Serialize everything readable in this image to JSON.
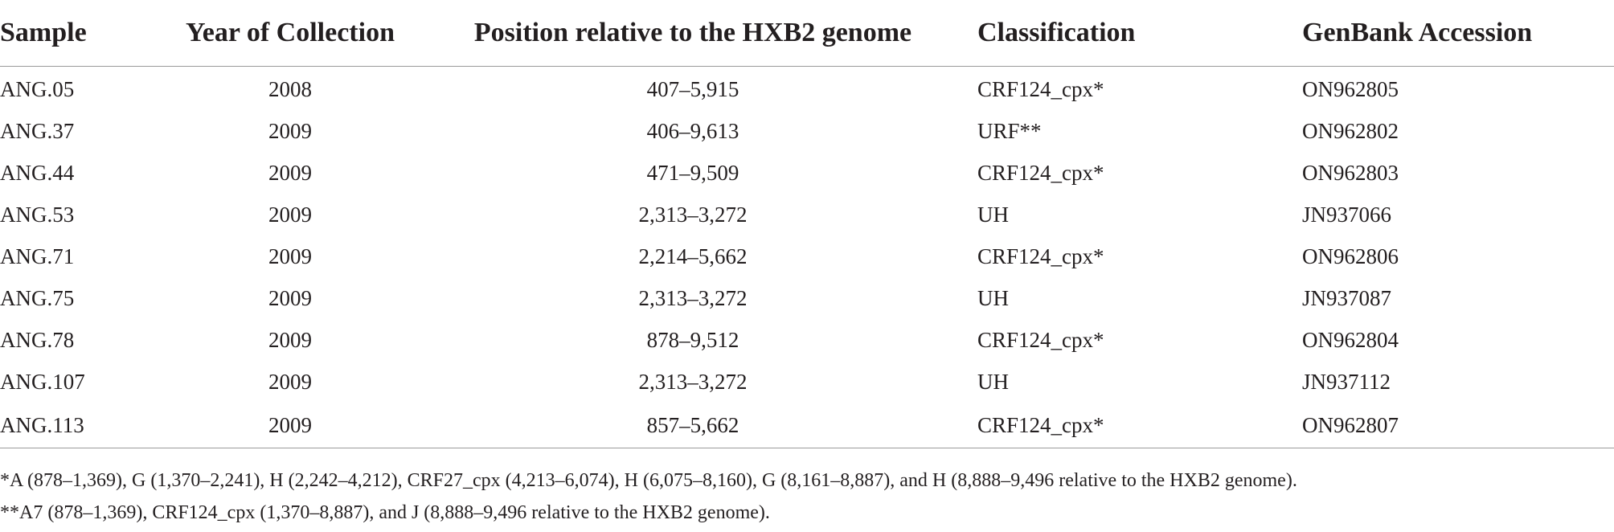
{
  "table": {
    "headers": [
      "Sample",
      "Year of Collection",
      "Position relative to the HXB2 genome",
      "Classification",
      "GenBank Accession"
    ],
    "rows": [
      [
        "ANG.05",
        "2008",
        "407–5,915",
        "CRF124_cpx*",
        "ON962805"
      ],
      [
        "ANG.37",
        "2009",
        "406–9,613",
        "URF**",
        "ON962802"
      ],
      [
        "ANG.44",
        "2009",
        "471–9,509",
        "CRF124_cpx*",
        "ON962803"
      ],
      [
        "ANG.53",
        "2009",
        "2,313–3,272",
        "UH",
        "JN937066"
      ],
      [
        "ANG.71",
        "2009",
        "2,214–5,662",
        "CRF124_cpx*",
        "ON962806"
      ],
      [
        "ANG.75",
        "2009",
        "2,313–3,272",
        "UH",
        "JN937087"
      ],
      [
        "ANG.78",
        "2009",
        "878–9,512",
        "CRF124_cpx*",
        "ON962804"
      ],
      [
        "ANG.107",
        "2009",
        "2,313–3,272",
        "UH",
        "JN937112"
      ],
      [
        "ANG.113",
        "2009",
        "857–5,662",
        "CRF124_cpx*",
        "ON962807"
      ]
    ]
  },
  "footnotes": [
    "*A (878–1,369), G (1,370–2,241), H (2,242–4,212), CRF27_cpx (4,213–6,074), H (6,075–8,160), G (8,161–8,887), and H (8,888–9,496 relative to the HXB2 genome).",
    "**A7 (878–1,369), CRF124_cpx (1,370–8,887), and J (8,888–9,496 relative to the HXB2 genome)."
  ]
}
